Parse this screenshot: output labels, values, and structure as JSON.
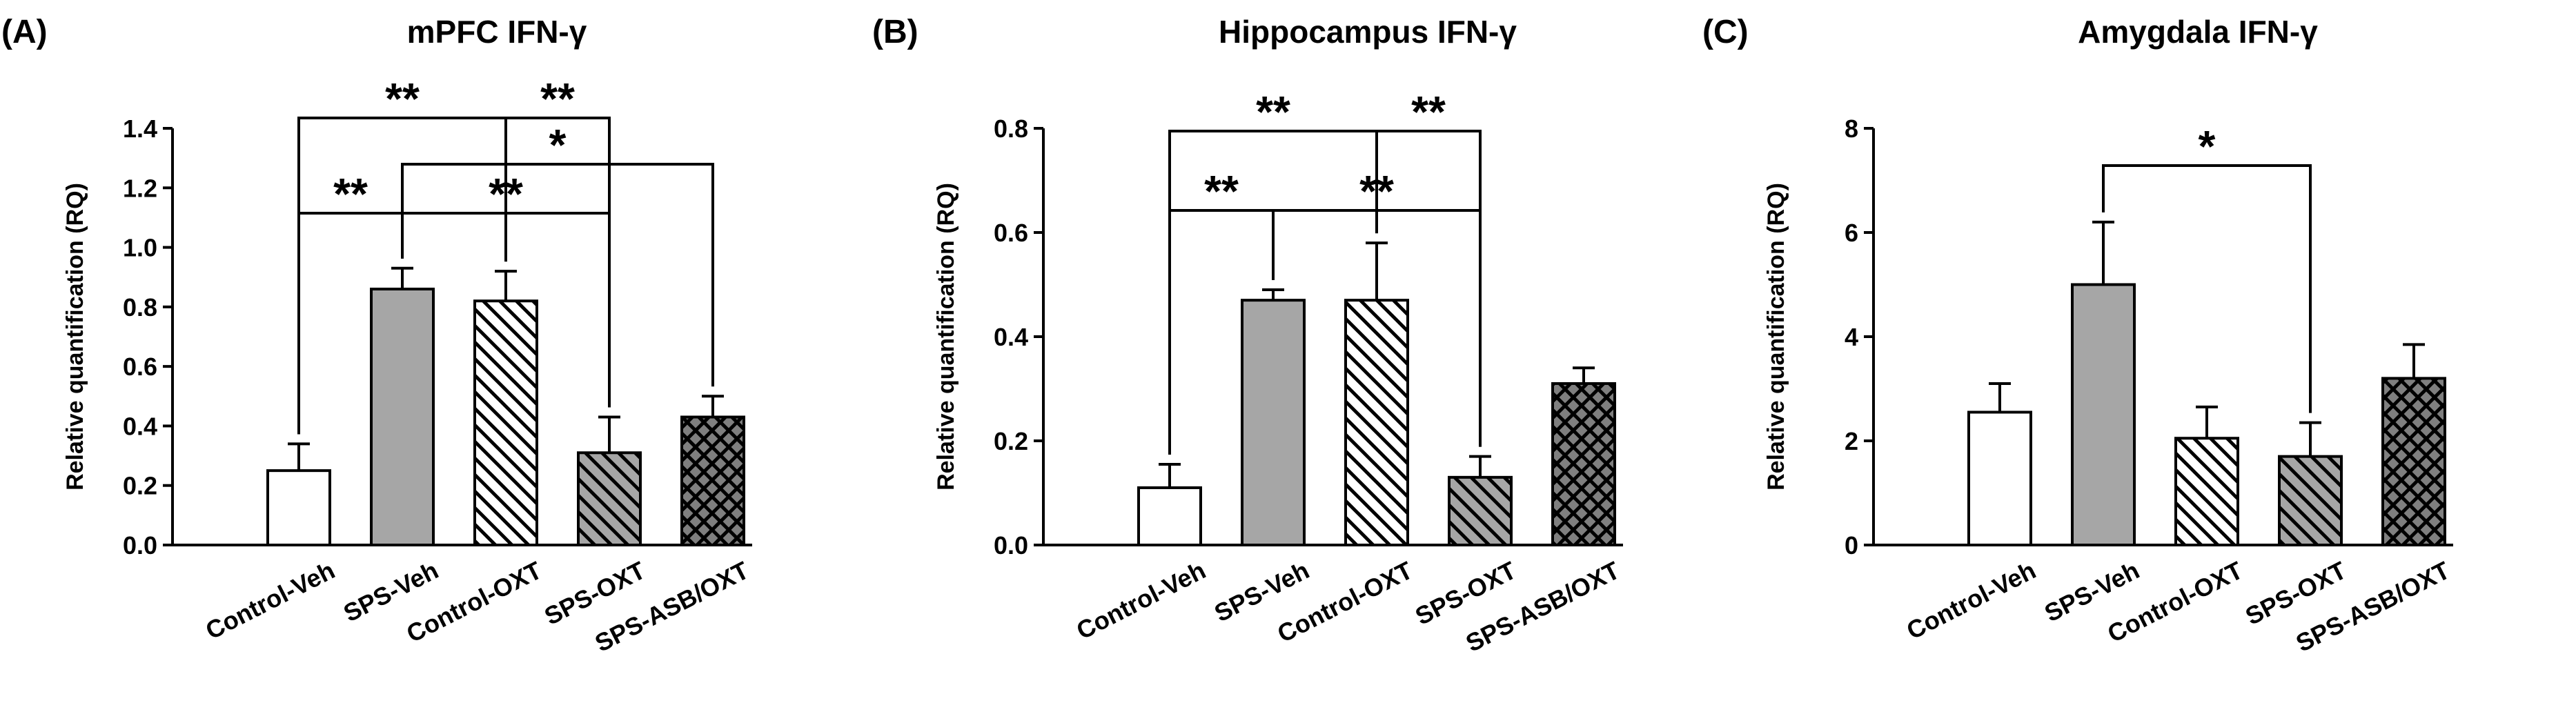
{
  "chart_data": [
    {
      "type": "bar",
      "panel": "(A)",
      "title": "mPFC IFN-γ",
      "ylabel": "Relative quantification (RQ)",
      "categories": [
        "Control-Veh",
        "SPS-Veh",
        "Control-OXT",
        "SPS-OXT",
        "SPS-ASB/OXT"
      ],
      "values": [
        0.25,
        0.86,
        0.82,
        0.31,
        0.43
      ],
      "errors": [
        0.09,
        0.07,
        0.1,
        0.12,
        0.07
      ],
      "colors": [
        "#ffffff",
        "#a6a6a6",
        "#ffffff",
        "#a6a6a6",
        "#7f7f7f"
      ],
      "hatches": [
        "none",
        "none",
        "diagonal",
        "diagonal",
        "cross"
      ],
      "ylim": [
        0,
        1.4
      ],
      "yticks": [
        {
          "value": 0,
          "label": "0.0"
        },
        0.2,
        0.4,
        0.6,
        0.8,
        {
          "value": 1,
          "label": "1.0"
        },
        1.2,
        1.4
      ],
      "annotations": [
        "**",
        "**",
        "*",
        "**",
        "**"
      ]
    },
    {
      "type": "bar",
      "panel": "(B)",
      "title": "Hippocampus IFN-γ",
      "ylabel": "Relative quantification (RQ)",
      "categories": [
        "Control-Veh",
        "SPS-Veh",
        "Control-OXT",
        "SPS-OXT",
        "SPS-ASB/OXT"
      ],
      "values": [
        0.11,
        0.47,
        0.47,
        0.13,
        0.31
      ],
      "errors": [
        0.045,
        0.02,
        0.11,
        0.04,
        0.03
      ],
      "colors": [
        "#ffffff",
        "#a6a6a6",
        "#ffffff",
        "#a6a6a6",
        "#7f7f7f"
      ],
      "hatches": [
        "none",
        "none",
        "diagonal",
        "diagonal",
        "cross"
      ],
      "ylim": [
        0,
        0.8
      ],
      "yticks": [
        {
          "value": 0,
          "label": "0.0"
        },
        0.2,
        0.4,
        0.6,
        0.8
      ],
      "annotations": [
        "**",
        "**",
        "**",
        "**"
      ]
    },
    {
      "type": "bar",
      "panel": "(C)",
      "title": "Amygdala IFN-γ",
      "ylabel": "Relative quantification (RQ)",
      "categories": [
        "Control-Veh",
        "SPS-Veh",
        "Control-OXT",
        "SPS-OXT",
        "SPS-ASB/OXT"
      ],
      "values": [
        2.55,
        5.0,
        2.05,
        1.7,
        3.2
      ],
      "errors": [
        0.55,
        1.2,
        0.6,
        0.65,
        0.65
      ],
      "colors": [
        "#ffffff",
        "#a6a6a6",
        "#ffffff",
        "#a6a6a6",
        "#7f7f7f"
      ],
      "hatches": [
        "none",
        "none",
        "diagonal",
        "diagonal",
        "cross"
      ],
      "ylim": [
        0,
        8
      ],
      "yticks": [
        0,
        2,
        4,
        6,
        8
      ],
      "annotations": [
        "*"
      ]
    }
  ]
}
